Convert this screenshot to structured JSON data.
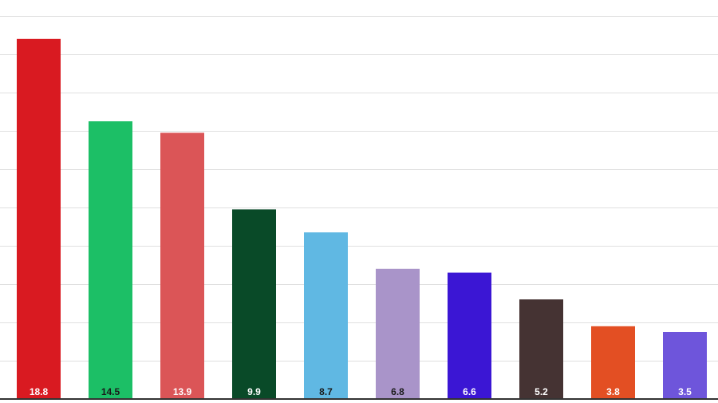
{
  "chart_data": {
    "type": "bar",
    "title": "",
    "xlabel": "",
    "ylabel": "",
    "ylim": [
      0,
      20
    ],
    "grid": true,
    "legend": "none",
    "values": [
      18.8,
      14.5,
      13.9,
      9.9,
      8.7,
      6.8,
      6.6,
      5.2,
      3.8,
      3.5
    ],
    "value_labels": [
      "18.8",
      "14.5",
      "13.9",
      "9.9",
      "8.7",
      "6.8",
      "6.6",
      "5.2",
      "3.8",
      "3.5"
    ],
    "bar_colors": [
      "#d91a21",
      "#1cbf66",
      "#db5557",
      "#094a28",
      "#60b8e3",
      "#a994c9",
      "#3b16d4",
      "#453333",
      "#e34f23",
      "#6e55db"
    ],
    "label_colors": [
      "#ffffff",
      "#1a1a1a",
      "#ffffff",
      "#ffffff",
      "#1a1a1a",
      "#1a1a1a",
      "#ffffff",
      "#ffffff",
      "#ffffff",
      "#ffffff"
    ],
    "gridline_color": "#e0e0e0",
    "axis_color": "#333333"
  }
}
